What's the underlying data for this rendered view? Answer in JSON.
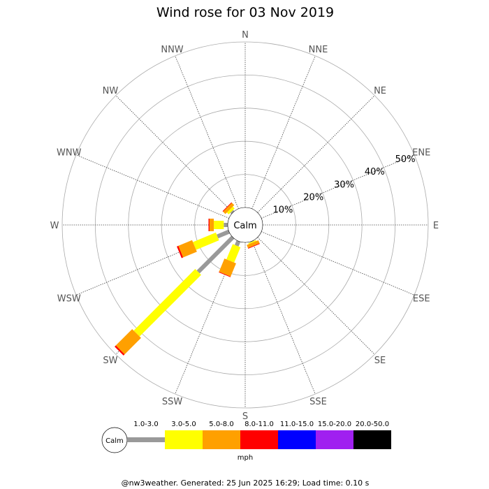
{
  "chart_data": {
    "type": "wind-rose",
    "title": "Wind rose for 03 Nov 2019",
    "calm_label": "Calm",
    "directions": [
      "N",
      "NNE",
      "NE",
      "ENE",
      "E",
      "ESE",
      "SE",
      "SSE",
      "S",
      "SSW",
      "SW",
      "WSW",
      "W",
      "WNW",
      "NW",
      "NNW"
    ],
    "radial_ticks": [
      "10%",
      "20%",
      "30%",
      "40%",
      "50%"
    ],
    "radial_max_percent": 50,
    "speed_bins": [
      {
        "label": "1.0-3.0",
        "color": "#999999"
      },
      {
        "label": "3.0-5.0",
        "color": "#ffff00"
      },
      {
        "label": "5.0-8.0",
        "color": "#ffa000"
      },
      {
        "label": "8.0-11.0",
        "color": "#ff0000"
      },
      {
        "label": "11.0-15.0",
        "color": "#0000ff"
      },
      {
        "label": "15.0-20.0",
        "color": "#a020f0"
      },
      {
        "label": "20.0-50.0",
        "color": "#000000"
      }
    ],
    "unit": "mph",
    "values_percent": {
      "N": [
        0,
        0,
        0,
        0,
        0,
        0,
        0
      ],
      "NNE": [
        0,
        0,
        0,
        0,
        0,
        0,
        0
      ],
      "NE": [
        0,
        0,
        0,
        0,
        0,
        0,
        0
      ],
      "ENE": [
        0,
        0,
        0,
        0,
        0,
        0,
        0
      ],
      "E": [
        0,
        0,
        0,
        0,
        0,
        0,
        0
      ],
      "ESE": [
        0,
        0,
        0,
        0,
        0,
        0,
        0
      ],
      "SE": [
        0,
        0,
        0,
        0,
        0,
        0,
        0
      ],
      "SSE": [
        0.2,
        0.3,
        1.0,
        0.2,
        0,
        0,
        0
      ],
      "S": [
        0,
        0,
        0,
        0,
        0,
        0,
        0
      ],
      "SSW": [
        1.5,
        5.0,
        4.3,
        0.2,
        0,
        0,
        0
      ],
      "SW": [
        14.8,
        26.3,
        7.0,
        0.5,
        0,
        0,
        0
      ],
      "WSW": [
        3.8,
        7.5,
        4.5,
        0.5,
        0,
        0,
        0
      ],
      "W": [
        1.2,
        3.0,
        1.3,
        0.3,
        0,
        0,
        0
      ],
      "WNW": [
        0,
        0,
        0,
        0,
        0,
        0,
        0
      ],
      "NW": [
        0.5,
        0.8,
        1.0,
        0.2,
        0,
        0,
        0
      ],
      "NNW": [
        0,
        0,
        0,
        0,
        0,
        0,
        0
      ]
    }
  },
  "footer": "@nw3weather. Generated: 25 Jun 2025 16:29; Load time: 0.10 s"
}
